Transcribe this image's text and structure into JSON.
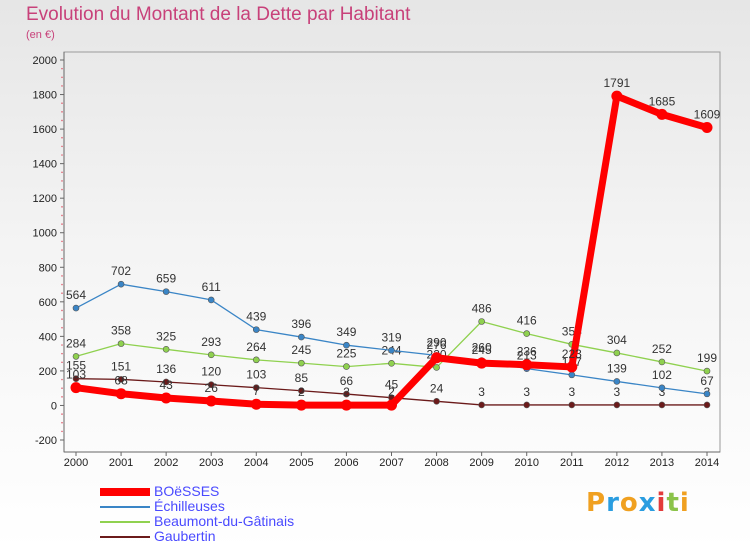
{
  "title": "Evolution du Montant de la Dette par Habitant",
  "unit": "(en €)",
  "brand": [
    "P",
    "r",
    "o",
    "x",
    "i",
    "t",
    "i"
  ],
  "brand_colors": [
    "#f0a020",
    "#2a9de0",
    "#f0a020",
    "#2a9de0",
    "#e33b3b",
    "#8bc34a",
    "#f0a020"
  ],
  "chart_data": {
    "type": "line",
    "x": [
      "2000",
      "2001",
      "2002",
      "2003",
      "2004",
      "2005",
      "2006",
      "2007",
      "2008",
      "2009",
      "2010",
      "2011",
      "2012",
      "2013",
      "2014"
    ],
    "ylim": [
      -200,
      2000
    ],
    "yticks": [
      -200,
      0,
      200,
      400,
      600,
      800,
      1000,
      1200,
      1400,
      1600,
      1800,
      2000
    ],
    "grid": false,
    "legend_position": "bottom-left",
    "series": [
      {
        "name": "Gaubertin",
        "color": "#6b1a1a",
        "values": [
          155,
          151,
          136,
          120,
          103,
          85,
          66,
          45,
          24,
          3,
          3,
          3,
          3,
          3,
          3
        ],
        "labels": [
          "155",
          "151",
          "136",
          "120",
          "103",
          "85",
          "66",
          "45",
          "24",
          "3",
          "3",
          "3",
          "3",
          "3",
          "3"
        ]
      },
      {
        "name": "Beaumont-du-Gâtinais",
        "color": "#8fd14f",
        "values": [
          284,
          358,
          325,
          293,
          264,
          245,
          225,
          244,
          220,
          486,
          416,
          354,
          304,
          252,
          199
        ],
        "labels": [
          "284",
          "358",
          "325",
          "293",
          "264",
          "245",
          "225",
          "244",
          "220",
          "486",
          "416",
          "354",
          "304",
          "252",
          "199"
        ]
      },
      {
        "name": "Échilleuses",
        "color": "#3a85c6",
        "values": [
          564,
          702,
          659,
          611,
          439,
          396,
          349,
          319,
          290,
          260,
          213,
          177,
          139,
          102,
          67
        ],
        "labels": [
          "564",
          "702",
          "659",
          "611",
          "439",
          "396",
          "349",
          "319",
          "290",
          "260",
          "213",
          "177",
          "139",
          "102",
          "67"
        ]
      },
      {
        "name": "BOëSSES",
        "color": "#ff0000",
        "values": [
          103,
          68,
          43,
          26,
          7,
          2,
          2,
          2,
          276,
          245,
          236,
          223,
          1791,
          1685,
          1609
        ],
        "labels": [
          "103",
          "68",
          "43",
          "26",
          "7",
          "2",
          "2",
          "2",
          "276",
          "245",
          "236",
          "223",
          "1791",
          "1685",
          "1609"
        ]
      }
    ],
    "legend": [
      {
        "name": "BOëSSES",
        "color": "#ff0000"
      },
      {
        "name": "Échilleuses",
        "color": "#3a85c6"
      },
      {
        "name": "Beaumont-du-Gâtinais",
        "color": "#8fd14f"
      },
      {
        "name": "Gaubertin",
        "color": "#6b1a1a"
      }
    ]
  }
}
